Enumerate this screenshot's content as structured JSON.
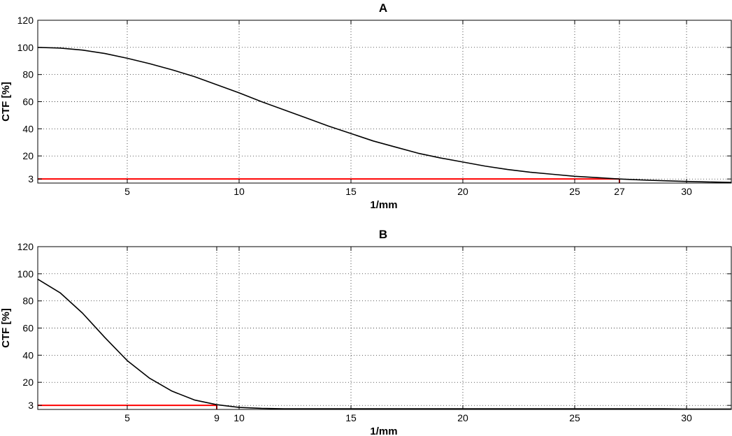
{
  "chart_data": [
    {
      "type": "line",
      "title": "A",
      "xlabel": "1/mm",
      "ylabel": "CTF [%]",
      "xlim": [
        1,
        32
      ],
      "ylim": [
        0,
        120
      ],
      "xticks": [
        5,
        10,
        15,
        20,
        25,
        27,
        30
      ],
      "yticks": [
        3,
        20,
        40,
        60,
        80,
        100,
        120
      ],
      "grid": true,
      "series": [
        {
          "color": "#000000",
          "x": [
            1,
            2,
            3,
            4,
            5,
            6,
            7,
            8,
            9,
            10,
            11,
            12,
            13,
            14,
            15,
            16,
            17,
            18,
            19,
            20,
            21,
            22,
            23,
            24,
            25,
            26,
            27,
            28,
            29,
            30,
            31,
            32
          ],
          "y": [
            100,
            99.5,
            98,
            95.5,
            92,
            88,
            83.5,
            78.5,
            72.5,
            66.5,
            60,
            54,
            48,
            42,
            36.5,
            31,
            26.5,
            22,
            18.5,
            15.5,
            12.5,
            10,
            8,
            6.5,
            5,
            4,
            3,
            2.3,
            1.7,
            1.2,
            0.8,
            0.5
          ]
        }
      ],
      "threshold": {
        "y": 3,
        "x": 27,
        "color": "#ff0000"
      }
    },
    {
      "type": "line",
      "title": "B",
      "xlabel": "1/mm",
      "ylabel": "CTF [%]",
      "xlim": [
        1,
        32
      ],
      "ylim": [
        0,
        120
      ],
      "xticks": [
        5,
        9,
        10,
        15,
        20,
        25,
        30
      ],
      "yticks": [
        3,
        20,
        40,
        60,
        80,
        100,
        120
      ],
      "grid": true,
      "series": [
        {
          "color": "#000000",
          "x": [
            1,
            2,
            3,
            4,
            5,
            6,
            7,
            8,
            9,
            10,
            11,
            12,
            13,
            14,
            15,
            16,
            17,
            18,
            19,
            20,
            21,
            22,
            23,
            24,
            25,
            26,
            27,
            28,
            29,
            30,
            31,
            32
          ],
          "y": [
            96,
            86,
            71,
            53,
            36,
            23,
            13.5,
            7,
            3.5,
            1.5,
            0.8,
            0.5,
            0.5,
            0.5,
            0.5,
            0.5,
            0.5,
            0.5,
            0.5,
            0.5,
            0.5,
            0.5,
            0.5,
            0.5,
            0.5,
            0.5,
            0.5,
            0.5,
            0.5,
            0.3,
            0.3,
            0.3
          ]
        }
      ],
      "threshold": {
        "y": 3,
        "x": 9,
        "color": "#ff0000"
      }
    }
  ]
}
